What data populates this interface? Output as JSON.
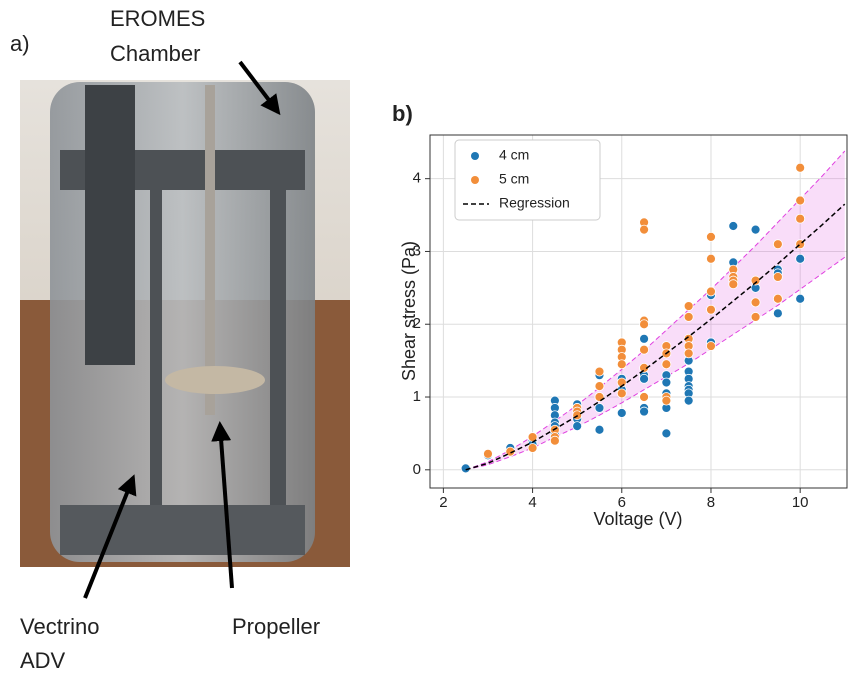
{
  "figure": {
    "panel_a": {
      "label": "a)",
      "chamber_label": [
        "EROMES",
        "Chamber"
      ],
      "adv_label": [
        "Vectrino",
        "ADV"
      ],
      "propeller_label": "Propeller"
    }
  },
  "chart_data": {
    "type": "scatter",
    "panel_label": "b)",
    "x_label": "Voltage (V)",
    "y_label": "Shear stress (Pa)",
    "xlim": [
      1.7,
      11.05
    ],
    "ylim": [
      -0.25,
      4.6
    ],
    "xticks": [
      2,
      4,
      6,
      8,
      10
    ],
    "yticks": [
      0,
      1,
      2,
      3,
      4
    ],
    "grid": true,
    "legend": "upper left",
    "series": [
      {
        "name": "4 cm",
        "type": "scatter",
        "color": "#1f77b4",
        "x": [
          2.5,
          3,
          3.5,
          4,
          4,
          4.5,
          4.5,
          4.5,
          4.5,
          4.5,
          4.5,
          5,
          5,
          5,
          5,
          5.5,
          5.5,
          5.5,
          5.5,
          6,
          6,
          6,
          6.5,
          6.5,
          6.5,
          6.5,
          6.5,
          7,
          7,
          7,
          7,
          7,
          7,
          7.5,
          7.5,
          7.5,
          7.5,
          7.5,
          7.5,
          7.5,
          8,
          8,
          8.5,
          8.5,
          9,
          9,
          9.5,
          9.5,
          9.5,
          10,
          10
        ],
        "values": [
          0.02,
          0.2,
          0.3,
          0.4,
          0.35,
          0.95,
          0.85,
          0.75,
          0.65,
          0.6,
          0.5,
          0.9,
          0.85,
          0.7,
          0.6,
          1.3,
          1.0,
          0.85,
          0.55,
          1.25,
          1.1,
          0.78,
          1.8,
          1.3,
          1.25,
          0.85,
          0.8,
          1.3,
          1.2,
          1.05,
          0.95,
          0.85,
          0.5,
          1.5,
          1.35,
          1.25,
          1.15,
          1.1,
          1.05,
          0.95,
          2.4,
          1.75,
          3.35,
          2.85,
          3.3,
          2.5,
          2.75,
          2.7,
          2.15,
          2.9,
          2.35
        ]
      },
      {
        "name": "5 cm",
        "type": "scatter",
        "color": "#f28e3a",
        "x": [
          3,
          3.5,
          4,
          4,
          4.5,
          4.5,
          4.5,
          5,
          5,
          5,
          5.5,
          5.5,
          5.5,
          6,
          6,
          6,
          6,
          6,
          6,
          6.5,
          6.5,
          6.5,
          6.5,
          6.5,
          6.5,
          6.5,
          7,
          7,
          7,
          7,
          7,
          7.5,
          7.5,
          7.5,
          7.5,
          7.5,
          8,
          8,
          8,
          8,
          8,
          8.5,
          8.5,
          8.5,
          8.5,
          9,
          9,
          9,
          9.5,
          9.5,
          9.5,
          10,
          10,
          10,
          10
        ],
        "values": [
          0.22,
          0.25,
          0.45,
          0.3,
          0.55,
          0.45,
          0.4,
          0.85,
          0.8,
          0.75,
          1.35,
          1.15,
          1.0,
          1.75,
          1.65,
          1.55,
          1.45,
          1.2,
          1.05,
          3.4,
          3.3,
          2.05,
          2.0,
          1.65,
          1.4,
          1.0,
          1.7,
          1.6,
          1.45,
          1.0,
          0.95,
          2.25,
          2.1,
          1.8,
          1.7,
          1.6,
          3.2,
          2.9,
          2.45,
          2.2,
          1.7,
          2.75,
          2.65,
          2.6,
          2.55,
          2.6,
          2.3,
          2.1,
          3.1,
          2.65,
          2.35,
          4.15,
          3.7,
          3.45,
          3.1
        ]
      },
      {
        "name": "Regression",
        "type": "line",
        "color": "#000000",
        "x": [
          2.5,
          3,
          3.5,
          4,
          4.5,
          5,
          5.5,
          6,
          6.5,
          7,
          7.5,
          8,
          8.5,
          9,
          9.5,
          10,
          10.5,
          11
        ],
        "values": [
          0,
          0.09,
          0.23,
          0.38,
          0.56,
          0.74,
          0.94,
          1.15,
          1.37,
          1.6,
          1.83,
          2.07,
          2.32,
          2.57,
          2.83,
          3.1,
          3.37,
          3.65
        ]
      }
    ],
    "band": {
      "color": "#e040e0",
      "upper": [
        0,
        0.11,
        0.27,
        0.46,
        0.67,
        0.89,
        1.13,
        1.38,
        1.64,
        1.92,
        2.2,
        2.48,
        2.78,
        3.08,
        3.4,
        3.72,
        4.04,
        4.38
      ],
      "lower": [
        0,
        0.07,
        0.18,
        0.3,
        0.45,
        0.59,
        0.75,
        0.92,
        1.1,
        1.28,
        1.46,
        1.66,
        1.86,
        2.06,
        2.26,
        2.48,
        2.7,
        2.92
      ]
    }
  }
}
